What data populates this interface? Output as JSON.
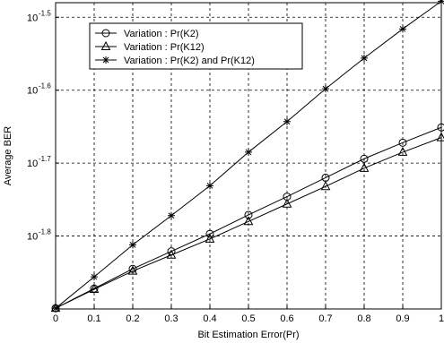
{
  "chart_data": {
    "type": "line",
    "title": "",
    "xlabel": "Bit Estimation Error(Pr)",
    "ylabel": "Average BER",
    "y_scale": "log10",
    "xlim": [
      0,
      1
    ],
    "ylim_log10": [
      -1.9,
      -1.48
    ],
    "grid": true,
    "grid_style": "dashed",
    "legend_position": "top-left",
    "x_ticks": [
      "0",
      "0.1",
      "0.2",
      "0.3",
      "0.4",
      "0.5",
      "0.6",
      "0.7",
      "0.8",
      "0.9",
      "1"
    ],
    "y_ticks": [
      {
        "base": "10",
        "exp": "-1.5",
        "log10": -1.5
      },
      {
        "base": "10",
        "exp": "-1.6",
        "log10": -1.6
      },
      {
        "base": "10",
        "exp": "-1.7",
        "log10": -1.7
      },
      {
        "base": "10",
        "exp": "-1.8",
        "log10": -1.8
      }
    ],
    "x": [
      0,
      0.1,
      0.2,
      0.3,
      0.4,
      0.5,
      0.6,
      0.7,
      0.8,
      0.9,
      1.0
    ],
    "series": [
      {
        "name": "Variation : Pr(K2)",
        "marker": "circle",
        "log10_values": [
          -1.899,
          -1.872,
          -1.845,
          -1.821,
          -1.797,
          -1.771,
          -1.746,
          -1.72,
          -1.694,
          -1.672,
          -1.651
        ]
      },
      {
        "name": "Variation : Pr(K12)",
        "marker": "triangle",
        "log10_values": [
          -1.899,
          -1.873,
          -1.848,
          -1.826,
          -1.804,
          -1.78,
          -1.756,
          -1.732,
          -1.707,
          -1.685,
          -1.665
        ]
      },
      {
        "name": "Variation : Pr(K2) and Pr(K12)",
        "marker": "asterisk",
        "log10_values": [
          -1.899,
          -1.856,
          -1.812,
          -1.772,
          -1.731,
          -1.685,
          -1.643,
          -1.598,
          -1.556,
          -1.516,
          -1.478
        ]
      }
    ]
  }
}
